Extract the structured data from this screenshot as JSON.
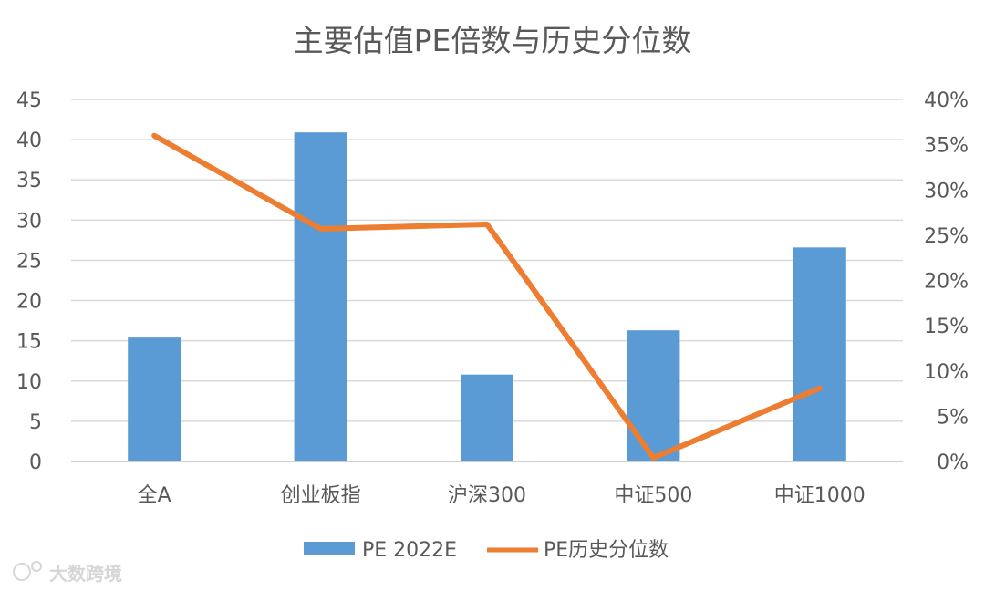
{
  "chart_data": {
    "type": "bar",
    "title": "主要估值PE倍数与历史分位数",
    "categories": [
      "全A",
      "创业板指",
      "沪深300",
      "中证500",
      "中证1000"
    ],
    "series": [
      {
        "name": "PE 2022E",
        "type": "bar",
        "axis": "left",
        "values": [
          15.4,
          40.9,
          10.8,
          16.3,
          26.6
        ],
        "color": "#5b9bd5"
      },
      {
        "name": "PE历史分位数",
        "type": "line",
        "axis": "right",
        "values": [
          0.36,
          0.257,
          0.262,
          0.004,
          0.081
        ],
        "color": "#ed7d31"
      }
    ],
    "y_left": {
      "min": 0,
      "max": 45,
      "step": 5,
      "ticks": [
        "0",
        "5",
        "10",
        "15",
        "20",
        "25",
        "30",
        "35",
        "40",
        "45"
      ]
    },
    "y_right": {
      "min": 0,
      "max": 0.4,
      "step": 0.05,
      "ticks": [
        "0%",
        "5%",
        "10%",
        "15%",
        "20%",
        "25%",
        "30%",
        "35%",
        "40%"
      ]
    },
    "grid": true,
    "legend_position": "bottom"
  },
  "watermark": {
    "text": "大数跨境"
  }
}
